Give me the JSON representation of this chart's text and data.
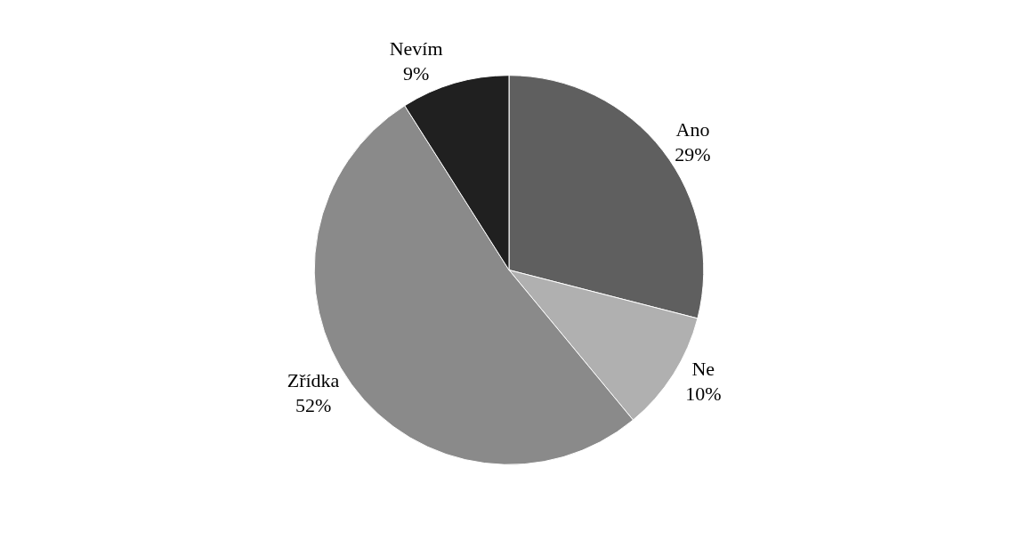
{
  "chart_data": {
    "type": "pie",
    "categories": [
      "Ano",
      "Ne",
      "Zřídka",
      "Nevím"
    ],
    "values": [
      29,
      10,
      52,
      9
    ],
    "value_labels": [
      "29%",
      "10%",
      "52%",
      "9%"
    ],
    "colors": [
      "#5f5f5f",
      "#b0b0b0",
      "#8a8a8a",
      "#202020"
    ],
    "legend": false
  }
}
